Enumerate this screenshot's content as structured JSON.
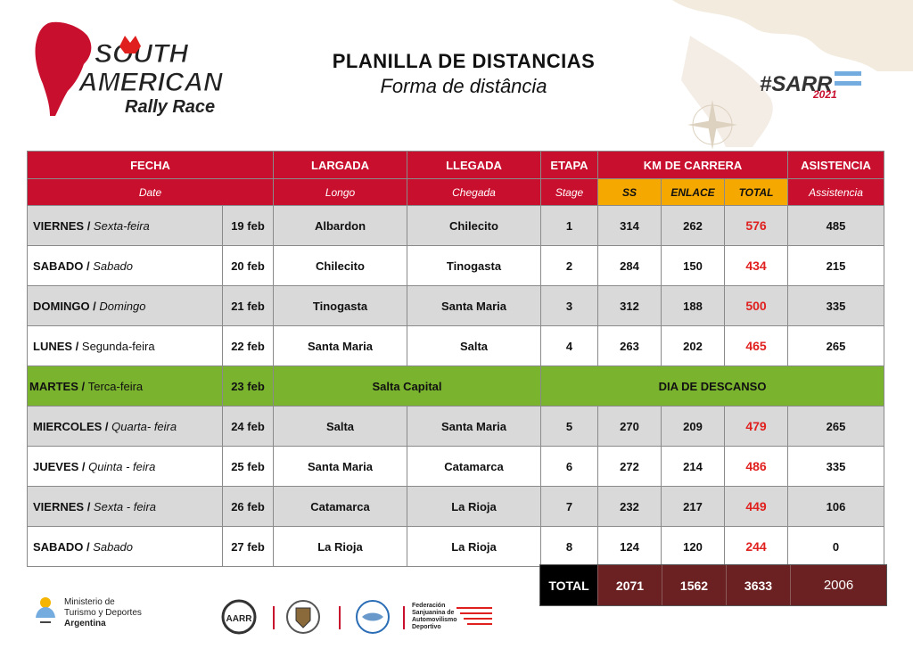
{
  "header": {
    "logo_text": [
      "SOUTH",
      "AMERICAN",
      "Rally Race"
    ],
    "title": "PLANILLA DE DISTANCIAS",
    "subtitle": "Forma de distância",
    "hashtag": "#SARR",
    "hashtag_year": "2021"
  },
  "table": {
    "headers": {
      "fecha": "FECHA",
      "fecha_sub": "Date",
      "largada": "LARGADA",
      "largada_sub": "Longo",
      "llegada": "LLEGADA",
      "llegada_sub": "Chegada",
      "etapa": "ETAPA",
      "etapa_sub": "Stage",
      "km": "KM DE CARRERA",
      "ss": "SS",
      "enlace": "ENLACE",
      "total": "TOTAL",
      "asistencia": "ASISTENCIA",
      "asistencia_sub": "Assistencia"
    },
    "rows": [
      {
        "day": "VIERNES",
        "sep": " / ",
        "day_pt": "Sexta-feira",
        "date": "19 feb",
        "start": "Albardon",
        "end": "Chilecito",
        "stage": "1",
        "ss": "314",
        "enlace": "262",
        "total": "576",
        "asist": "485"
      },
      {
        "day": "SABADO",
        "sep": " / ",
        "day_pt": "Sabado",
        "date": "20 feb",
        "start": "Chilecito",
        "end": "Tinogasta",
        "stage": "2",
        "ss": "284",
        "enlace": "150",
        "total": "434",
        "asist": "215"
      },
      {
        "day": "DOMINGO",
        "sep": " / ",
        "day_pt": "Domingo",
        "date": "21 feb",
        "start": "Tinogasta",
        "end": "Santa Maria",
        "stage": "3",
        "ss": "312",
        "enlace": "188",
        "total": "500",
        "asist": "335"
      },
      {
        "day": "LUNES",
        "sep": " / ",
        "day_pt": "Segunda-feira",
        "date": "22 feb",
        "start": "Santa Maria",
        "end": "Salta",
        "stage": "4",
        "ss": "263",
        "enlace": "202",
        "total": "465",
        "asist": "265"
      }
    ],
    "rest": {
      "day": "MARTES",
      "sep": " / ",
      "day_pt": "Terca-feira",
      "date": "23 feb",
      "place": "Salta Capital",
      "note": "DIA DE DESCANSO"
    },
    "rows2": [
      {
        "day": "MIERCOLES",
        "sep": " / ",
        "day_pt": "Quarta- feira",
        "date": "24 feb",
        "start": "Salta",
        "end": "Santa Maria",
        "stage": "5",
        "ss": "270",
        "enlace": "209",
        "total": "479",
        "asist": "265"
      },
      {
        "day": "JUEVES",
        "sep": " / ",
        "day_pt": "Quinta - feira",
        "date": "25 feb",
        "start": "Santa Maria",
        "end": "Catamarca",
        "stage": "6",
        "ss": "272",
        "enlace": "214",
        "total": "486",
        "asist": "335"
      },
      {
        "day": "VIERNES",
        "sep": " / ",
        "day_pt": "Sexta - feira",
        "date": "26 feb",
        "start": "Catamarca",
        "end": "La Rioja",
        "stage": "7",
        "ss": "232",
        "enlace": "217",
        "total": "449",
        "asist": "106"
      },
      {
        "day": "SABADO",
        "sep": " / ",
        "day_pt": "Sabado",
        "date": "27 feb",
        "start": "La Rioja",
        "end": "La Rioja",
        "stage": "8",
        "ss": "124",
        "enlace": "120",
        "total": "244",
        "asist": "0"
      }
    ],
    "totals": {
      "label": "TOTAL",
      "ss": "2071",
      "enlace": "1562",
      "total": "3633",
      "asist": "2006"
    }
  },
  "footer": {
    "ministry_line1": "Ministerio de",
    "ministry_line2": "Turismo y Deportes",
    "ministry_line3": "Argentina",
    "aarr": "AARR",
    "federacion": [
      "Federación",
      "Sanjuanina de",
      "Automovilismo",
      "Deportivo"
    ]
  },
  "colors": {
    "header_red": "#c8102e",
    "km_yellow": "#f5a800",
    "rest_green": "#7ab32e",
    "total_red": "#e0201e",
    "totals_dark": "#6b2121"
  }
}
